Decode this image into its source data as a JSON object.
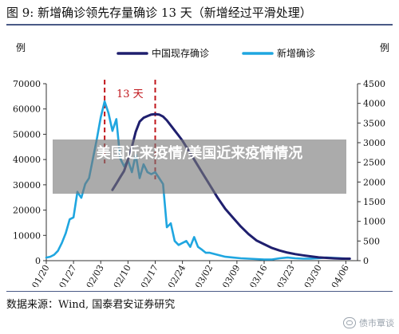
{
  "figure": {
    "title": "图 9: 新增确诊领先存量确诊 13 天（新增经过平滑处理）",
    "source": "数据来源：Wind, 国泰君安证券研究"
  },
  "overlay": {
    "text": "美国近来疫情/美国近来疫情情况"
  },
  "watermark": {
    "text": "债市覃谈",
    "icon": "chat-bubble-icon"
  },
  "colors": {
    "existing": "#1f1f6e",
    "new": "#1fa6e0",
    "annotation": "#c0161b"
  },
  "chart_data": {
    "type": "line",
    "y_left": {
      "label": "例",
      "ylim": [
        0,
        70000
      ],
      "ticks": [
        0,
        10000,
        20000,
        30000,
        40000,
        50000,
        60000,
        70000
      ]
    },
    "y_right": {
      "label": "例",
      "ylim": [
        0,
        4500
      ],
      "ticks": [
        0,
        500,
        1000,
        1500,
        2000,
        2500,
        3000,
        3500,
        4000,
        4500
      ]
    },
    "x_ticks": [
      "01/20",
      "01/27",
      "02/03",
      "02/10",
      "02/17",
      "02/24",
      "03/02",
      "03/09",
      "03/16",
      "03/23",
      "03/30",
      "04/06"
    ],
    "x_tick_days": [
      0,
      7,
      14,
      21,
      28,
      35,
      42,
      49,
      56,
      63,
      70,
      77
    ],
    "x_range_days": [
      0,
      80
    ],
    "annotation": {
      "label": "13 天",
      "from_day": 15,
      "to_day": 28
    },
    "legend_position": "top-center",
    "grid": false,
    "series": [
      {
        "name": "中国现存确诊",
        "axis": "left",
        "color": "#1f1f6e",
        "days": [
          17,
          18,
          19,
          20,
          21,
          22,
          23,
          24,
          25,
          26,
          27,
          28,
          29,
          30,
          31,
          32,
          33,
          34,
          35,
          36,
          38,
          40,
          42,
          44,
          46,
          48,
          50,
          52,
          54,
          56,
          58,
          60,
          62,
          64,
          66,
          68,
          70,
          72,
          74,
          76,
          78
        ],
        "values": [
          28000,
          30500,
          33000,
          35500,
          40000,
          45000,
          51000,
          55000,
          56500,
          57200,
          57800,
          58000,
          57800,
          57000,
          55500,
          53500,
          51500,
          49500,
          47500,
          45000,
          40000,
          35000,
          30000,
          25000,
          20500,
          17000,
          13500,
          10500,
          8000,
          6500,
          5000,
          4000,
          3200,
          2600,
          2100,
          1700,
          1300,
          1100,
          900,
          800,
          800
        ]
      },
      {
        "name": "新增确诊",
        "axis": "right",
        "color": "#1fa6e0",
        "days": [
          0,
          1,
          2,
          3,
          4,
          5,
          6,
          7,
          8,
          9,
          10,
          11,
          12,
          13,
          14,
          15,
          16,
          17,
          18,
          19,
          20,
          21,
          22,
          23,
          24,
          25,
          26,
          27,
          28,
          29,
          30,
          31,
          32,
          33,
          34,
          35,
          36,
          37,
          38,
          39,
          40,
          41,
          42,
          44,
          46,
          48,
          50,
          52,
          54,
          56,
          58,
          60,
          62,
          64,
          66,
          68,
          70,
          72,
          74,
          76,
          78
        ],
        "values": [
          80,
          100,
          150,
          250,
          450,
          700,
          1050,
          1100,
          1750,
          1600,
          1950,
          2100,
          2600,
          3100,
          3650,
          4050,
          3750,
          3300,
          3600,
          2600,
          2400,
          2550,
          2250,
          2700,
          2100,
          2450,
          2250,
          2200,
          2250,
          2100,
          1950,
          850,
          950,
          500,
          400,
          450,
          500,
          350,
          600,
          350,
          280,
          200,
          200,
          150,
          100,
          80,
          60,
          50,
          40,
          30,
          30,
          60,
          80,
          60,
          50,
          50,
          60,
          80,
          70,
          60,
          50
        ]
      }
    ]
  }
}
